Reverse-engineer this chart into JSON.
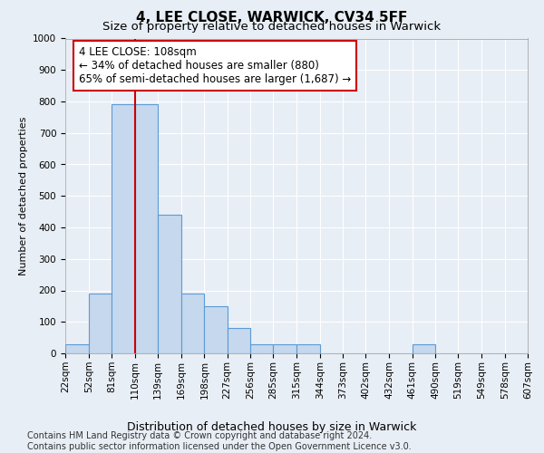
{
  "title": "4, LEE CLOSE, WARWICK, CV34 5FF",
  "subtitle": "Size of property relative to detached houses in Warwick",
  "xlabel": "Distribution of detached houses by size in Warwick",
  "ylabel": "Number of detached properties",
  "bins": [
    22,
    52,
    81,
    110,
    139,
    169,
    198,
    227,
    256,
    285,
    315,
    344,
    373,
    402,
    432,
    461,
    490,
    519,
    549,
    578,
    607
  ],
  "counts": [
    30,
    190,
    790,
    790,
    440,
    190,
    150,
    80,
    30,
    30,
    30,
    0,
    0,
    0,
    0,
    30,
    0,
    0,
    0,
    0
  ],
  "bar_color": "#c5d8ee",
  "bar_edge_color": "#5b9bd5",
  "vline_x": 110,
  "vline_color": "#cc0000",
  "annotation_text": "4 LEE CLOSE: 108sqm\n← 34% of detached houses are smaller (880)\n65% of semi-detached houses are larger (1,687) →",
  "annotation_box_facecolor": "white",
  "annotation_box_edgecolor": "#cc0000",
  "ylim": [
    0,
    1000
  ],
  "yticks": [
    0,
    100,
    200,
    300,
    400,
    500,
    600,
    700,
    800,
    900,
    1000
  ],
  "bg_color": "#e8eef5",
  "grid_color": "#ffffff",
  "footer_text": "Contains HM Land Registry data © Crown copyright and database right 2024.\nContains public sector information licensed under the Open Government Licence v3.0.",
  "title_fontsize": 11,
  "subtitle_fontsize": 9.5,
  "ylabel_fontsize": 8,
  "xlabel_fontsize": 9,
  "tick_fontsize": 7.5,
  "annotation_fontsize": 8.5,
  "footer_fontsize": 7
}
